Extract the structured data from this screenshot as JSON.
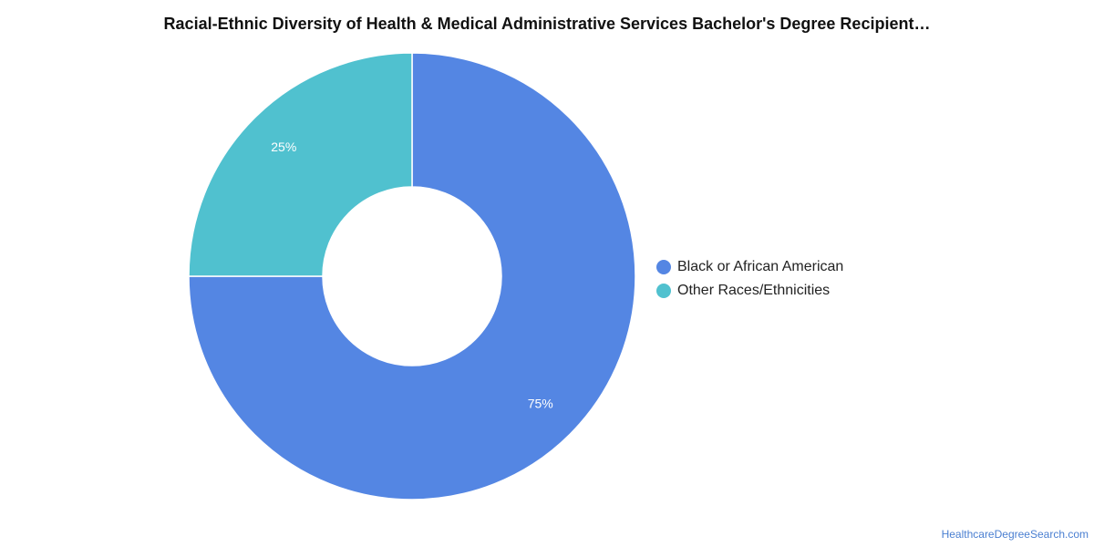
{
  "chart_data": {
    "type": "pie",
    "title": "Racial-Ethnic Diversity of Health & Medical Administrative Services Bachelor's Degree Recipient…",
    "categories": [
      "Black or African American",
      "Other Races/Ethnicities"
    ],
    "values": [
      75,
      25
    ],
    "value_labels": [
      "75%",
      "25%"
    ],
    "colors": [
      "#5486e3",
      "#50c1cf"
    ],
    "donut": true,
    "legend_position": "right"
  },
  "legend": {
    "items": [
      {
        "label": "Black or African American",
        "color": "#5486e3"
      },
      {
        "label": "Other Races/Ethnicities",
        "color": "#50c1cf"
      }
    ]
  },
  "footer": {
    "source": "HealthcareDegreeSearch.com"
  }
}
